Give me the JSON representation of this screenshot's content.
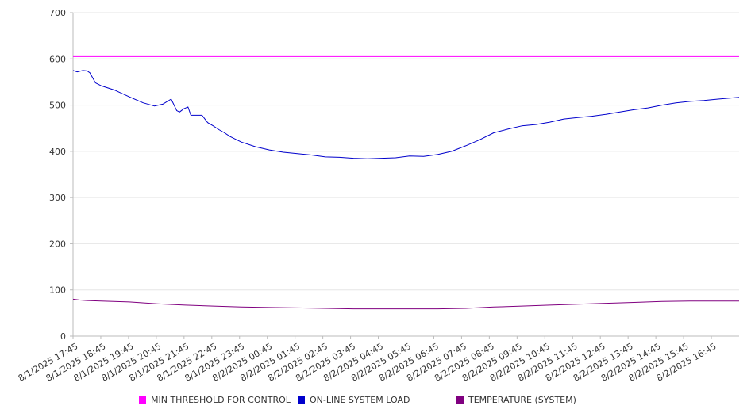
{
  "chart_data": {
    "type": "line",
    "title": "",
    "xlabel": "",
    "ylabel": "",
    "ylim": [
      0,
      700
    ],
    "yticks": [
      0,
      100,
      200,
      300,
      400,
      500,
      600,
      700
    ],
    "grid": true,
    "legend_position": "bottom",
    "x_tick_labels": [
      "8/1/2025 17:45",
      "8/1/2025 18:45",
      "8/1/2025 19:45",
      "8/1/2025 20:45",
      "8/1/2025 21:45",
      "8/1/2025 22:45",
      "8/1/2025 23:45",
      "8/2/2025 00:45",
      "8/2/2025 01:45",
      "8/2/2025 02:45",
      "8/2/2025 03:45",
      "8/2/2025 04:45",
      "8/2/2025 05:45",
      "8/2/2025 06:45",
      "8/2/2025 07:45",
      "8/2/2025 08:45",
      "8/2/2025 09:45",
      "8/2/2025 10:45",
      "8/2/2025 11:45",
      "8/2/2025 12:45",
      "8/2/2025 13:45",
      "8/2/2025 14:45",
      "8/2/2025 15:45",
      "8/2/2025 16:45"
    ],
    "x_hours_from": [
      0,
      23.75
    ],
    "series": [
      {
        "name": "MIN THRESHOLD FOR CONTROL",
        "color": "#ff00ff",
        "x": [
          0,
          23.75
        ],
        "values": [
          605,
          605
        ]
      },
      {
        "name": "ON-LINE SYSTEM LOAD",
        "color": "#0000cc",
        "x": [
          0,
          0.15,
          0.35,
          0.5,
          0.6,
          0.8,
          1.0,
          1.25,
          1.5,
          2.0,
          2.5,
          2.9,
          3.2,
          3.5,
          3.7,
          3.8,
          3.95,
          4.1,
          4.2,
          4.4,
          4.6,
          4.8,
          5.0,
          5.2,
          5.4,
          5.6,
          6.0,
          6.5,
          7.0,
          7.5,
          8.0,
          8.5,
          9.0,
          9.5,
          10.0,
          10.5,
          11.0,
          11.5,
          12.0,
          12.5,
          13.0,
          13.5,
          14.0,
          14.5,
          15.0,
          15.5,
          16.0,
          16.5,
          17.0,
          17.5,
          18.0,
          18.5,
          19.0,
          19.5,
          20.0,
          20.5,
          21.0,
          21.5,
          22.0,
          22.5,
          23.0,
          23.75
        ],
        "values": [
          575,
          572,
          575,
          574,
          570,
          548,
          542,
          537,
          532,
          518,
          505,
          498,
          502,
          513,
          488,
          485,
          492,
          496,
          478,
          478,
          478,
          462,
          455,
          447,
          440,
          432,
          420,
          410,
          403,
          398,
          395,
          392,
          388,
          387,
          385,
          384,
          385,
          386,
          390,
          389,
          393,
          400,
          412,
          425,
          440,
          448,
          455,
          458,
          463,
          470,
          473,
          476,
          480,
          485,
          490,
          494,
          500,
          505,
          508,
          510,
          513,
          517
        ]
      },
      {
        "name": "TEMPERATURE (SYSTEM)",
        "color": "#800080",
        "x": [
          0,
          0.25,
          0.5,
          1.0,
          2.0,
          3.0,
          4.0,
          5.0,
          6.0,
          7.0,
          8.0,
          9.0,
          10.0,
          11.0,
          12.0,
          13.0,
          14.0,
          15.0,
          16.0,
          17.0,
          18.0,
          19.0,
          20.0,
          21.0,
          22.0,
          23.0,
          23.75
        ],
        "values": [
          80,
          78,
          77,
          76,
          74,
          70,
          67,
          65,
          63,
          62,
          61,
          60,
          59,
          59,
          59,
          59,
          60,
          63,
          65,
          67,
          69,
          71,
          73,
          75,
          76,
          76,
          76
        ]
      }
    ]
  }
}
